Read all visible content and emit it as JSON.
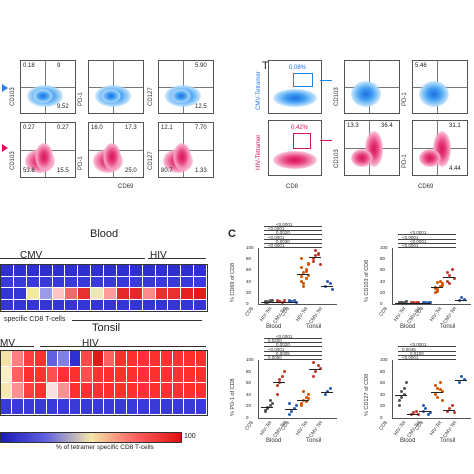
{
  "top_left": {
    "row1": [
      {
        "y_label": "CD103",
        "q": [
          "0.18",
          "9",
          "",
          "9.52"
        ]
      },
      {
        "y_label": "PD-1",
        "q": [
          "",
          "",
          "",
          ""
        ]
      },
      {
        "y_label": "CD127",
        "q": [
          "",
          "5.90",
          "",
          "12.5"
        ]
      }
    ],
    "row2": [
      {
        "y_label": "CD103",
        "q": [
          "0.27",
          "0.27",
          "53.8",
          "15.5"
        ]
      },
      {
        "y_label": "PD-1",
        "q": [
          "16.0",
          "17.3",
          "",
          "25.0"
        ]
      },
      {
        "y_label": "CD127",
        "q": [
          "12.1",
          "7.70",
          "80.7",
          "1.33"
        ]
      }
    ],
    "x_label": "CD69"
  },
  "tonsil": {
    "title": "Tonsil",
    "cmv_label": "CMV-Tetramer",
    "hiv_label": "HIV-Tetramer",
    "cmv_gate": "0.08%",
    "hiv_gate": "0.42%",
    "x_label": "CD8",
    "x_label2": "CD69",
    "plots_row1": [
      {
        "y_label": "CD103",
        "q": [
          "",
          "",
          "",
          ""
        ]
      },
      {
        "y_label": "PD-1",
        "q": [
          "5.46",
          "",
          "",
          ""
        ]
      }
    ],
    "plots_row2": [
      {
        "y_label": "CD103",
        "q": [
          "13.3",
          "36.4",
          "",
          ""
        ]
      },
      {
        "y_label": "PD-1",
        "q": [
          "",
          "31.1",
          "",
          "4.44"
        ]
      }
    ]
  },
  "heatmap_blood": {
    "title": "Blood",
    "group1": "CMV",
    "group2": "HIV",
    "caption": "specific CD8 T-cells",
    "cells": [
      [
        "#2f2fd0",
        "#2f2fd0",
        "#2f2fd0",
        "#2f2fd0",
        "#2f2fd0",
        "#2f2fd0",
        "#2f2fd0",
        "#2f2fd0",
        "#2f2fd0",
        "#2f2fd0",
        "#2f2fd0",
        "#2f2fd0",
        "#2f2fd0",
        "#2f2fd0",
        "#2f2fd0",
        "#2f2fd0"
      ],
      [
        "#3a3ad8",
        "#3a3ad8",
        "#3a3ad8",
        "#3a3ad8",
        "#3a3ad8",
        "#3a3ad8",
        "#3a3ad8",
        "#3a3ad8",
        "#3a3ad8",
        "#3a3ad8",
        "#3a3ad8",
        "#3a3ad8",
        "#3a3ad8",
        "#3a3ad8",
        "#3a3ad8",
        "#3a3ad8"
      ],
      [
        "#3535d4",
        "#3535d4",
        "#f2eaa0",
        "#9a9ae8",
        "#ffc5c5",
        "#f26b6b",
        "#e83030",
        "#f0e6b8",
        "#ff9c9c",
        "#e62a2a",
        "#e62a2a",
        "#ff8a8a",
        "#e83030",
        "#e83030",
        "#e62020",
        "#e21a1a"
      ],
      [
        "#3535d4",
        "#3535d4",
        "#3535d4",
        "#3535d4",
        "#3535d4",
        "#3535d4",
        "#3535d4",
        "#3535d4",
        "#3535d4",
        "#3535d4",
        "#3535d4",
        "#3535d4",
        "#3535d4",
        "#3535d4",
        "#3535d4",
        "#3535d4"
      ]
    ]
  },
  "heatmap_tonsil": {
    "title": "Tonsil",
    "group1": "MV",
    "group2": "HIV",
    "caption": "% of tetramer specific CD8 T-cells",
    "scale_max": "100",
    "cells": [
      [
        "#f3e1a6",
        "#ff8080",
        "#ff4040",
        "#ff3030",
        "#6060e0",
        "#8080e8",
        "#3030d0",
        "#ff4a4a",
        "#e41818",
        "#ff6060",
        "#ff3030",
        "#ff3030",
        "#ff3030",
        "#ff3030",
        "#ff3030",
        "#ff3030",
        "#ff3030",
        "#ff3030"
      ],
      [
        "#f7efc6",
        "#ff6060",
        "#ff3030",
        "#ff3030",
        "#ff5050",
        "#ff3030",
        "#ff3030",
        "#ff5050",
        "#ff3030",
        "#ff3030",
        "#ff3030",
        "#ff3030",
        "#ff3030",
        "#ff3030",
        "#ff3030",
        "#ff3030",
        "#ff3030",
        "#ff3030"
      ],
      [
        "#f5e7b2",
        "#ff9090",
        "#ff4040",
        "#ff3030",
        "#f7e0e0",
        "#ff9090",
        "#ff3030",
        "#ff3030",
        "#ff3030",
        "#ff3030",
        "#ff3030",
        "#ff3030",
        "#ff3030",
        "#ff3030",
        "#ff3030",
        "#ff3030",
        "#ff3030",
        "#ff3030"
      ],
      [
        "#3a3ad8",
        "#3a3ad8",
        "#3a3ad8",
        "#3a3ad8",
        "#3a3ad8",
        "#3a3ad8",
        "#3a3ad8",
        "#3a3ad8",
        "#3a3ad8",
        "#3a3ad8",
        "#3a3ad8",
        "#3a3ad8",
        "#3a3ad8",
        "#3a3ad8",
        "#3a3ad8",
        "#3a3ad8",
        "#3a3ad8",
        "#3a3ad8"
      ]
    ]
  },
  "panel_c": {
    "letter": "C",
    "panels": [
      {
        "ylabel": "% CD69 of CD8",
        "yticks": [
          "100",
          "80",
          "60",
          "40",
          "20",
          "0"
        ],
        "ymax": 100,
        "pvals": [
          "<0.0001",
          "0.0030",
          "<0.0001",
          "0.0020",
          "<0.0001",
          "<0.0001"
        ],
        "groups": [
          {
            "x": 0,
            "color": "#555555",
            "vals": [
              2,
              3,
              4,
              5,
              3,
              2,
              6
            ]
          },
          {
            "x": 1,
            "color": "#c0392b",
            "vals": [
              3,
              4,
              2,
              5,
              6,
              3
            ]
          },
          {
            "x": 2,
            "color": "#2a5db0",
            "vals": [
              4,
              3,
              5,
              2,
              6,
              3
            ]
          },
          {
            "x": 3,
            "color": "#d35400",
            "vals": [
              40,
              55,
              60,
              70,
              80,
              30,
              45,
              50,
              65,
              35,
              58,
              72,
              48
            ]
          },
          {
            "x": 4,
            "color": "#c0392b",
            "vals": [
              75,
              85,
              90,
              70,
              80,
              95,
              88
            ]
          },
          {
            "x": 5,
            "color": "#2a5db0",
            "vals": [
              30,
              40,
              35,
              25
            ]
          }
        ],
        "ticks": [
          "CD8",
          "HIV-Tet",
          "CMV-Tet",
          "CD8",
          "HIV-Tet",
          "CMV-Tet"
        ]
      },
      {
        "ylabel": "% CD103 of CD8",
        "yticks": [
          "100",
          "80",
          "60",
          "40",
          "20",
          "0"
        ],
        "ymax": 100,
        "pvals": [
          "<0.0001",
          "<0.0001",
          "<0.0001",
          "<0.0001"
        ],
        "groups": [
          {
            "x": 0,
            "color": "#555555",
            "vals": [
              1,
              2,
              1,
              3,
              2,
              1
            ]
          },
          {
            "x": 1,
            "color": "#c0392b",
            "vals": [
              1,
              2,
              1,
              2
            ]
          },
          {
            "x": 2,
            "color": "#2a5db0",
            "vals": [
              1,
              1,
              2,
              1
            ]
          },
          {
            "x": 3,
            "color": "#d35400",
            "vals": [
              20,
              25,
              30,
              35,
              28,
              22,
              40,
              33,
              26,
              38
            ]
          },
          {
            "x": 4,
            "color": "#c0392b",
            "vals": [
              40,
              50,
              60,
              45,
              55,
              35
            ]
          },
          {
            "x": 5,
            "color": "#2a5db0",
            "vals": [
              5,
              10,
              8
            ]
          }
        ],
        "ticks": [
          "CD8",
          "HIV-Tet",
          "CMV-Tet",
          "CD8",
          "HIV-Tet",
          "CMV-Tet"
        ]
      },
      {
        "ylabel": "% PD-1 of CD8",
        "yticks": [
          "100",
          "80",
          "60",
          "40",
          "20",
          "0"
        ],
        "ymax": 100,
        "pvals": [
          "0.0050",
          "0.0005",
          "<0.0001",
          "0.0020",
          "0.0200",
          "<0.0001"
        ],
        "groups": [
          {
            "x": 0,
            "color": "#555555",
            "vals": [
              10,
              15,
              20,
              25,
              12,
              18,
              30
            ]
          },
          {
            "x": 1,
            "color": "#c0392b",
            "vals": [
              40,
              60,
              70,
              80,
              55,
              65
            ]
          },
          {
            "x": 2,
            "color": "#2a5db0",
            "vals": [
              5,
              10,
              15,
              20,
              25
            ]
          },
          {
            "x": 3,
            "color": "#d35400",
            "vals": [
              20,
              30,
              35,
              40,
              25,
              45,
              28,
              32
            ]
          },
          {
            "x": 4,
            "color": "#c0392b",
            "vals": [
              70,
              80,
              90,
              85,
              95
            ]
          },
          {
            "x": 5,
            "color": "#2a5db0",
            "vals": [
              40,
              45,
              50
            ]
          }
        ],
        "ticks": [
          "CD8",
          "HIV-Tet",
          "CMV-Tet",
          "CD8",
          "HIV-Tet",
          "CMV-Tet"
        ]
      },
      {
        "ylabel": "% CD127 of CD8",
        "yticks": [
          "100",
          "80",
          "60",
          "40",
          "20",
          "0"
        ],
        "ymax": 100,
        "pvals": [
          "<0.0001",
          "0.0100",
          "0.0045",
          "<0.0001"
        ],
        "groups": [
          {
            "x": 0,
            "color": "#555555",
            "vals": [
              30,
              45,
              50,
              60,
              20,
              35,
              40
            ]
          },
          {
            "x": 1,
            "color": "#c0392b",
            "vals": [
              5,
              8,
              10,
              6
            ]
          },
          {
            "x": 2,
            "color": "#2a5db0",
            "vals": [
              10,
              15,
              5,
              8,
              20
            ]
          },
          {
            "x": 3,
            "color": "#d35400",
            "vals": [
              40,
              50,
              60,
              45,
              55,
              35,
              48,
              30
            ]
          },
          {
            "x": 4,
            "color": "#c0392b",
            "vals": [
              10,
              15,
              20,
              8
            ]
          },
          {
            "x": 5,
            "color": "#2a5db0",
            "vals": [
              60,
              70,
              65
            ]
          }
        ],
        "ticks": [
          "CD8",
          "HIV-Tet",
          "CMV-Tet",
          "CD8",
          "HIV-Tet",
          "CMV-Tet"
        ]
      }
    ],
    "group_blood": "Blood",
    "group_tonsil": "Tonsil"
  }
}
